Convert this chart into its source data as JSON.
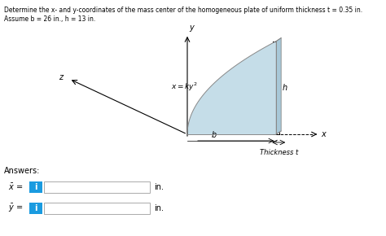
{
  "title_line1": "Determine the x- and y-coordinates of the mass center of the homogeneous plate of uniform thickness t = 0.35 in.",
  "title_line2": "Assume b = 26 in., h = 13 in.",
  "bg_color": "#ffffff",
  "shape_fill": "#c5dde8",
  "shape_edge": "#888888",
  "answers_label": "Answers:",
  "x_bar_label": "$\\bar{x}$ =",
  "y_bar_label": "$\\bar{y}$ =",
  "units": "in.",
  "curve_label": "$x = ky^2$",
  "h_label": "h",
  "b_label": "b",
  "x_label": "x",
  "y_label": "y",
  "z_label": "z",
  "thickness_label": "Thickness t",
  "btn_color": "#1a9be0"
}
